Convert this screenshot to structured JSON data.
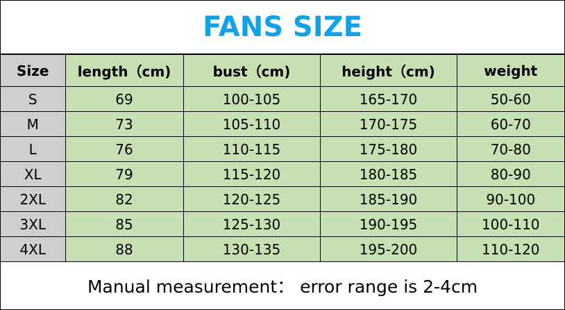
{
  "title": "FANS SIZE",
  "colors": {
    "title": "#10a2e8",
    "size_column": "#d0cece",
    "cells": "#c6e0b4"
  },
  "table": {
    "headers": [
      "Size",
      "length（cm)",
      "bust（cm)",
      "height（cm)",
      "weight"
    ],
    "rows": [
      [
        "S",
        "69",
        "100-105",
        "165-170",
        "50-60"
      ],
      [
        "M",
        "73",
        "105-110",
        "170-175",
        "60-70"
      ],
      [
        "L",
        "76",
        "110-115",
        "175-180",
        "70-80"
      ],
      [
        "XL",
        "79",
        "115-120",
        "180-185",
        "80-90"
      ],
      [
        "2XL",
        "82",
        "120-125",
        "185-190",
        "90-100"
      ],
      [
        "3XL",
        "85",
        "125-130",
        "190-195",
        "100-110"
      ],
      [
        "4XL",
        "88",
        "130-135",
        "195-200",
        "110-120"
      ]
    ]
  },
  "footer": "Manual measurement：  error range is 2-4cm"
}
